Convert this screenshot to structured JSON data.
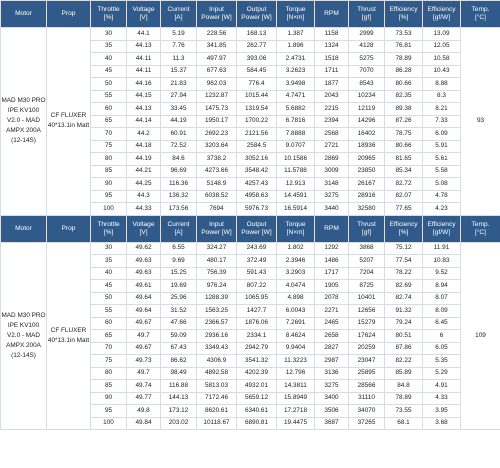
{
  "table": {
    "headers": [
      {
        "l1": "Motor",
        "l2": ""
      },
      {
        "l1": "Prop",
        "l2": ""
      },
      {
        "l1": "Throttle",
        "l2": "[%]"
      },
      {
        "l1": "Voltage",
        "l2": "[V]"
      },
      {
        "l1": "Current",
        "l2": "[A]"
      },
      {
        "l1": "Input",
        "l2": "Power [W]"
      },
      {
        "l1": "Output",
        "l2": "Power [W]"
      },
      {
        "l1": "Torque",
        "l2": "[N×m]"
      },
      {
        "l1": "RPM",
        "l2": ""
      },
      {
        "l1": "Thrust",
        "l2": "[gf]"
      },
      {
        "l1": "Efficiency",
        "l2": "[%]"
      },
      {
        "l1": "Efficiency",
        "l2": "[gf/W]"
      },
      {
        "l1": "Temp.",
        "l2": "[°C]"
      }
    ],
    "sections": [
      {
        "motor": "MAD M30 PRO IPE KV100 V2.0 - MAD AMPX 200A (12-14S)",
        "prop": "CF FLUXER 40*13.1in Matt",
        "temp": "93",
        "rows": [
          [
            "30",
            "44.1",
            "5.19",
            "228.56",
            "168.13",
            "1.387",
            "1158",
            "2999",
            "73.53",
            "13.09"
          ],
          [
            "35",
            "44.13",
            "7.76",
            "341.85",
            "262.77",
            "1.896",
            "1324",
            "4128",
            "76.81",
            "12.05"
          ],
          [
            "40",
            "44.11",
            "11.3",
            "497.97",
            "393.06",
            "2.4731",
            "1518",
            "5275",
            "78.89",
            "10.58"
          ],
          [
            "45",
            "44.11",
            "15.37",
            "677.63",
            "584.45",
            "3.2623",
            "1711",
            "7070",
            "86.28",
            "10.43"
          ],
          [
            "50",
            "44.16",
            "21.83",
            "962.03",
            "776.4",
            "3.9498",
            "1877",
            "8543",
            "80.66",
            "8.88"
          ],
          [
            "55",
            "44.15",
            "27.94",
            "1232.87",
            "1015.44",
            "4.7471",
            "2043",
            "10234",
            "82.35",
            "8.3"
          ],
          [
            "60",
            "44.13",
            "33.45",
            "1475.73",
            "1319.54",
            "5.6882",
            "2215",
            "12119",
            "89.38",
            "8.21"
          ],
          [
            "65",
            "44.14",
            "44.19",
            "1950.17",
            "1700.22",
            "6.7816",
            "2394",
            "14296",
            "87.26",
            "7.33"
          ],
          [
            "70",
            "44.2",
            "60.91",
            "2692.23",
            "2121.56",
            "7.8888",
            "2568",
            "16402",
            "78.75",
            "6.09"
          ],
          [
            "75",
            "44.18",
            "72.52",
            "3203.64",
            "2584.5",
            "9.0707",
            "2721",
            "18936",
            "80.66",
            "5.91"
          ],
          [
            "80",
            "44.19",
            "84.6",
            "3738.2",
            "3052.16",
            "10.1586",
            "2869",
            "20965",
            "81.65",
            "5.61"
          ],
          [
            "85",
            "44.21",
            "96.69",
            "4273.66",
            "3548.42",
            "11.5788",
            "3009",
            "23850",
            "85.34",
            "5.58"
          ],
          [
            "90",
            "44.25",
            "116.36",
            "5148.9",
            "4257.43",
            "12.913",
            "3148",
            "26167",
            "82.72",
            "5.08"
          ],
          [
            "95",
            "44.3",
            "136.32",
            "6038.52",
            "4958.63",
            "14.4591",
            "3275",
            "28916",
            "82.07",
            "4.78"
          ],
          [
            "100",
            "44.33",
            "173.56",
            "7694",
            "5976.73",
            "16.5914",
            "3440",
            "32580",
            "77.65",
            "4.23"
          ]
        ]
      },
      {
        "motor": "MAD M30 PRO IPE KV100 V2.0 - MAD AMPX 200A (12-14S)",
        "prop": "CF FLUXER 40*13.1in Matt",
        "temp": "109",
        "rows": [
          [
            "30",
            "49.62",
            "6.55",
            "324.27",
            "243.69",
            "1.802",
            "1292",
            "3868",
            "75.12",
            "11.91"
          ],
          [
            "35",
            "49.63",
            "9.69",
            "480.17",
            "372.49",
            "2.3946",
            "1486",
            "5207",
            "77.54",
            "10.83"
          ],
          [
            "40",
            "49.63",
            "15.25",
            "756.39",
            "591.43",
            "3.2903",
            "1717",
            "7204",
            "78.22",
            "9.52"
          ],
          [
            "45",
            "49.61",
            "19.69",
            "976.24",
            "807.22",
            "4.0474",
            "1905",
            "8725",
            "82.69",
            "8.94"
          ],
          [
            "50",
            "49.64",
            "25.96",
            "1288.39",
            "1065.95",
            "4.898",
            "2078",
            "10401",
            "82.74",
            "8.07"
          ],
          [
            "55",
            "49.64",
            "31.52",
            "1563.25",
            "1427.7",
            "6.0043",
            "2271",
            "12656",
            "91.32",
            "8.09"
          ],
          [
            "60",
            "49.67",
            "47.66",
            "2366.57",
            "1876.06",
            "7.2691",
            "2465",
            "15279",
            "79.24",
            "6.45"
          ],
          [
            "65",
            "49.7",
            "59.09",
            "2936.16",
            "2334.1",
            "8.4624",
            "2658",
            "17624",
            "80.51",
            "6"
          ],
          [
            "70",
            "49.67",
            "67.43",
            "3349.43",
            "2942.79",
            "9.9404",
            "2827",
            "20259",
            "87.86",
            "6.05"
          ],
          [
            "75",
            "49.73",
            "86.62",
            "4306.9",
            "3541.32",
            "11.3223",
            "2987",
            "23047",
            "82.22",
            "5.35"
          ],
          [
            "80",
            "49.7",
            "98.49",
            "4892.58",
            "4202.39",
            "12.796",
            "3136",
            "25895",
            "85.89",
            "5.29"
          ],
          [
            "85",
            "49.74",
            "116.88",
            "5813.03",
            "4932.01",
            "14.3811",
            "3275",
            "28566",
            "84.8",
            "4.91"
          ],
          [
            "90",
            "49.77",
            "144.13",
            "7172.46",
            "5659.12",
            "15.8949",
            "3400",
            "31110",
            "78.89",
            "4.33"
          ],
          [
            "95",
            "49.8",
            "173.12",
            "8620.61",
            "6340.61",
            "17.2718",
            "3506",
            "34070",
            "73.55",
            "3.95"
          ],
          [
            "100",
            "49.84",
            "203.02",
            "10118.67",
            "6890.81",
            "19.4475",
            "3687",
            "37265",
            "68.1",
            "3.68"
          ]
        ]
      }
    ]
  }
}
